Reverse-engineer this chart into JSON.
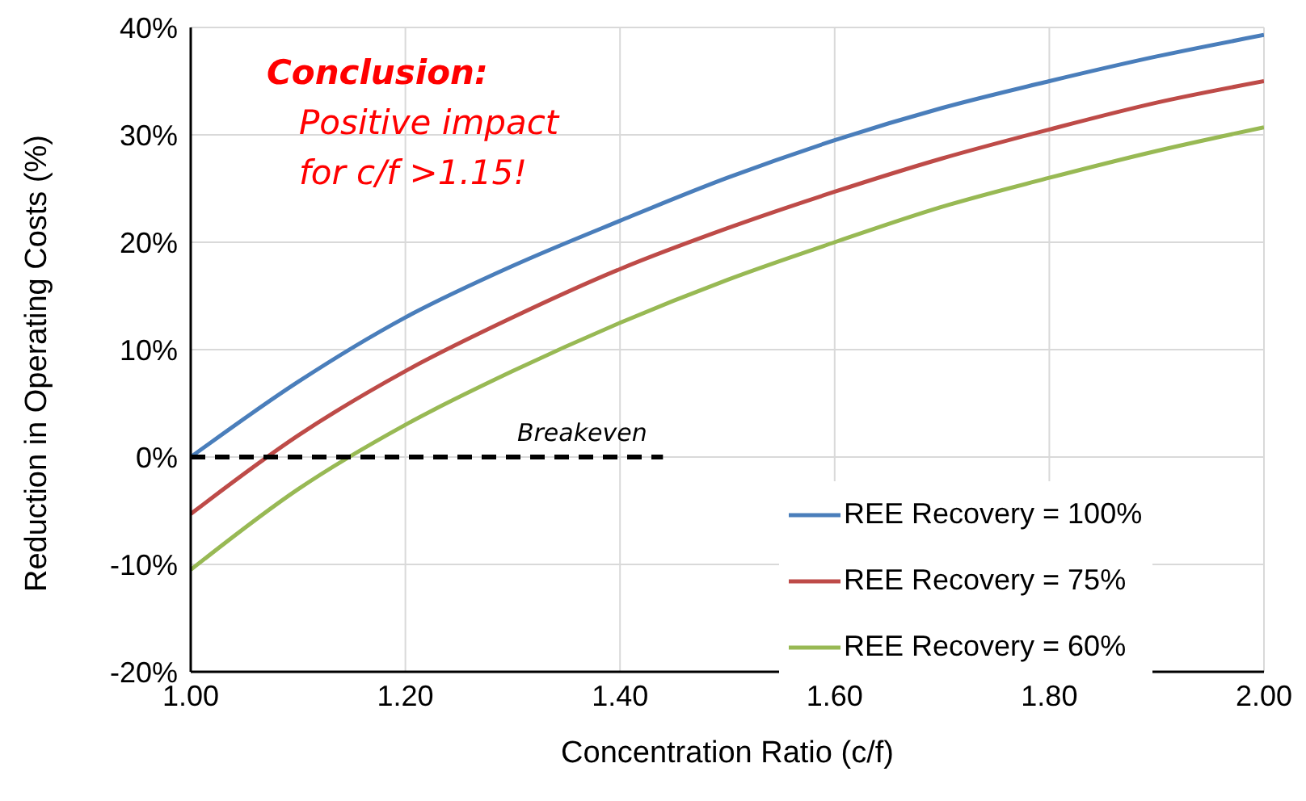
{
  "chart_data": {
    "type": "line",
    "xlabel": "Concentration Ratio (c/f)",
    "ylabel": "Reduction in Operating Costs (%)",
    "annotations": [
      "Conclusion:",
      "Positive impact",
      "for c/f >1.15!"
    ],
    "series": [
      {
        "name": "REE Recovery = 100%",
        "color": "#4a7ebb",
        "x": [
          1.0,
          1.1,
          1.2,
          1.3,
          1.4,
          1.5,
          1.6,
          1.7,
          1.8,
          1.9,
          2.0
        ],
        "values": [
          0,
          7,
          13,
          17.8,
          22,
          26,
          29.5,
          32.5,
          35,
          37.3,
          39.3
        ]
      },
      {
        "name": "REE Recovery = 75%",
        "color": "#be4b48",
        "x": [
          1.0,
          1.1,
          1.2,
          1.3,
          1.4,
          1.5,
          1.6,
          1.7,
          1.8,
          1.9,
          2.0
        ],
        "values": [
          -5.3,
          2,
          8,
          13,
          17.5,
          21.3,
          24.7,
          27.8,
          30.5,
          33,
          35
        ]
      },
      {
        "name": "REE Recovery = 60%",
        "color": "#98b954",
        "x": [
          1.0,
          1.1,
          1.2,
          1.3,
          1.4,
          1.5,
          1.6,
          1.7,
          1.8,
          1.9,
          2.0
        ],
        "values": [
          -10.5,
          -3,
          3,
          8,
          12.5,
          16.5,
          20,
          23.3,
          26,
          28.5,
          30.7
        ]
      },
      {
        "name": "Breakeven",
        "color": "#000000",
        "line_style": "dashed",
        "x": [
          1.0,
          1.44
        ],
        "values": [
          0,
          0
        ]
      }
    ],
    "xlim": [
      1.0,
      2.0
    ],
    "xticks": [
      {
        "value": 1.0,
        "label": "1.00"
      },
      {
        "value": 1.2,
        "label": "1.20"
      },
      {
        "value": 1.4,
        "label": "1.40"
      },
      {
        "value": 1.6,
        "label": "1.60"
      },
      {
        "value": 1.8,
        "label": "1.80"
      },
      {
        "value": 2.0,
        "label": "2.00"
      }
    ],
    "ylim": [
      -20,
      40
    ],
    "yticks": [
      {
        "value": -20,
        "label": "-20%"
      },
      {
        "value": -10,
        "label": "-10%"
      },
      {
        "value": 0,
        "label": "0%"
      },
      {
        "value": 10,
        "label": "10%"
      },
      {
        "value": 20,
        "label": "20%"
      },
      {
        "value": 30,
        "label": "30%"
      },
      {
        "value": 40,
        "label": "40%"
      }
    ],
    "grid": true,
    "legend": "bottom right",
    "marker": "none"
  }
}
